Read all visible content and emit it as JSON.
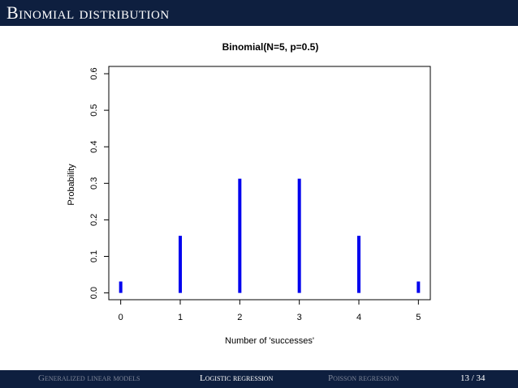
{
  "slide": {
    "title": "Binomial distribution",
    "footer": {
      "section_1": "Generalized linear models",
      "section_2": "Logistic regression",
      "section_3": "Poisson regression",
      "page": "13 / 34"
    }
  },
  "chart_data": {
    "type": "bar",
    "title": "Binomial(N=5, p=0.5)",
    "xlabel": "Number of 'successes'",
    "ylabel": "Probability",
    "x": [
      0,
      1,
      2,
      3,
      4,
      5
    ],
    "values": [
      0.03125,
      0.15625,
      0.3125,
      0.3125,
      0.15625,
      0.03125
    ],
    "xticks": [
      "0",
      "1",
      "2",
      "3",
      "4",
      "5"
    ],
    "yticks": [
      "0.0",
      "0.1",
      "0.2",
      "0.3",
      "0.4",
      "0.5",
      "0.6"
    ],
    "xlim": [
      -0.2,
      5.2
    ],
    "ylim": [
      -0.0186,
      0.62
    ],
    "grid": false,
    "bar_color": "#0000ee"
  }
}
